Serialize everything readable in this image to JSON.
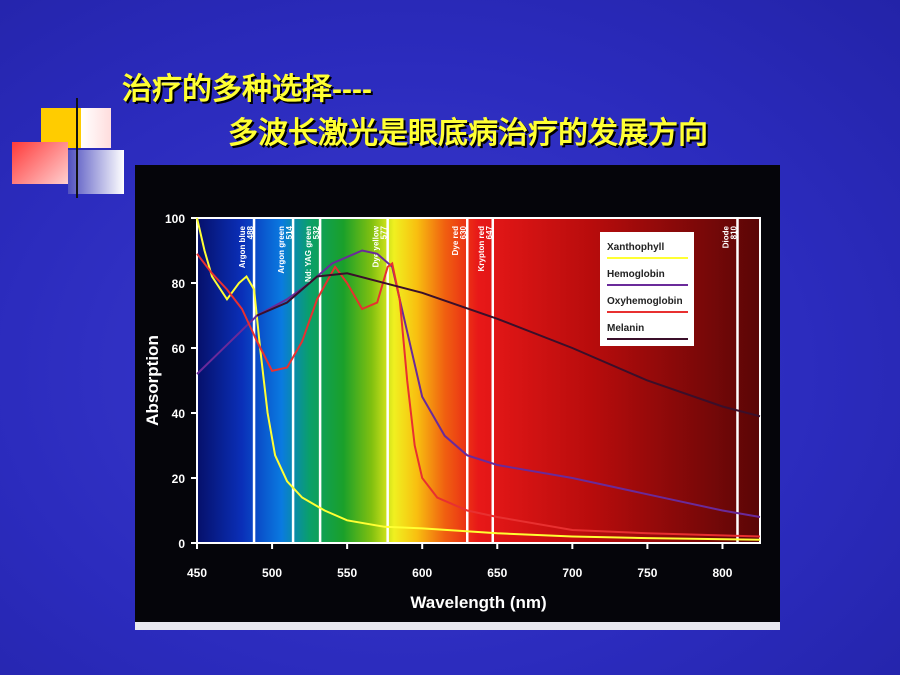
{
  "title_line1": "治疗的多种选择----",
  "title_line2": "多波长激光是眼底病治疗的发展方向",
  "chart_data": {
    "type": "line",
    "xlabel": "Wavelength (nm)",
    "ylabel": "Absorption",
    "xlim": [
      450,
      825
    ],
    "ylim": [
      0,
      100
    ],
    "xticks": [
      450,
      500,
      550,
      600,
      650,
      700,
      750,
      800
    ],
    "yticks": [
      0,
      20,
      40,
      60,
      80,
      100
    ],
    "lasers": [
      {
        "name": "Argon blue",
        "value": 488
      },
      {
        "name": "Argon green",
        "value": 514
      },
      {
        "name": "Nd: YAG green",
        "value": 532
      },
      {
        "name": "Dye yellow",
        "value": 577
      },
      {
        "name": "Dye red",
        "value": 630
      },
      {
        "name": "Krypton red",
        "value": 647
      },
      {
        "name": "Diode",
        "value": 810
      }
    ],
    "series": [
      {
        "name": "Xanthophyll",
        "color": "#ffff33",
        "x": [
          450,
          455,
          460,
          470,
          478,
          483,
          488,
          492,
          497,
          502,
          510,
          520,
          535,
          550,
          575,
          600,
          650,
          700,
          750,
          825
        ],
        "values": [
          100,
          90,
          82,
          75,
          80,
          82,
          78,
          60,
          40,
          27,
          19,
          14,
          10,
          7,
          5,
          4.5,
          3,
          2,
          1.5,
          1
        ]
      },
      {
        "name": "Hemoglobin",
        "color": "#6a2a9a",
        "x": [
          450,
          470,
          490,
          510,
          525,
          540,
          560,
          570,
          580,
          590,
          600,
          615,
          630,
          650,
          700,
          750,
          800,
          825
        ],
        "values": [
          52,
          61,
          70,
          75,
          80,
          86,
          90,
          89,
          85,
          65,
          45,
          33,
          27,
          24,
          20,
          15,
          10,
          8
        ]
      },
      {
        "name": "Oxyhemoglobin",
        "color": "#e83030",
        "x": [
          450,
          460,
          470,
          480,
          490,
          500,
          510,
          520,
          530,
          542,
          550,
          560,
          570,
          577,
          580,
          585,
          590,
          595,
          600,
          610,
          630,
          650,
          700,
          750,
          825
        ],
        "values": [
          89,
          83,
          78,
          72,
          62,
          53,
          54,
          62,
          75,
          85,
          80,
          72,
          74,
          85,
          86,
          75,
          50,
          30,
          20,
          14,
          10,
          8,
          4,
          3,
          2
        ]
      },
      {
        "name": "Melanin",
        "color": "#3a0f2a",
        "x": [
          490,
          510,
          530,
          550,
          600,
          650,
          700,
          750,
          800,
          825
        ],
        "values": [
          70,
          74,
          82,
          83,
          77,
          69,
          60,
          50,
          42,
          39
        ]
      }
    ]
  }
}
